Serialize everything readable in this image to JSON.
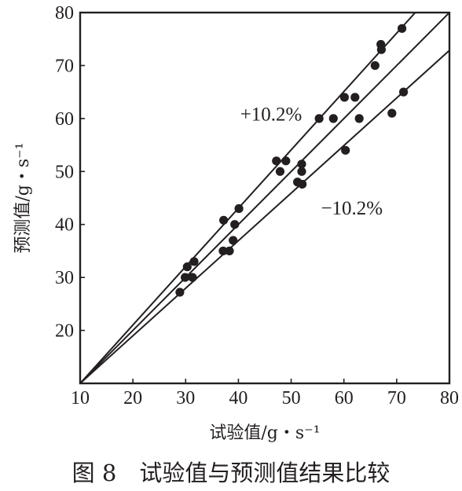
{
  "chart_data": {
    "type": "scatter",
    "title": "",
    "xlabel": "试验值/g・s⁻¹",
    "ylabel": "预测值/g・s⁻¹",
    "xlim": [
      10,
      80
    ],
    "ylim": [
      10,
      80
    ],
    "x_ticks": [
      10,
      20,
      30,
      40,
      50,
      60,
      70,
      80
    ],
    "y_ticks": [
      10,
      20,
      30,
      40,
      50,
      60,
      70,
      80
    ],
    "grid": false,
    "reference_lines": [
      {
        "label": "",
        "slope": 1.0
      },
      {
        "label": "+10.2%",
        "slope": 1.102
      },
      {
        "label": "−10.2%",
        "slope": 0.898
      }
    ],
    "points": [
      [
        28.9,
        27.2
      ],
      [
        29.9,
        30.0
      ],
      [
        30.3,
        32.0
      ],
      [
        31.3,
        30.0
      ],
      [
        31.6,
        33.0
      ],
      [
        37.1,
        35.0
      ],
      [
        37.2,
        40.8
      ],
      [
        38.3,
        35.0
      ],
      [
        39.0,
        37.0
      ],
      [
        39.3,
        40.0
      ],
      [
        40.1,
        43.0
      ],
      [
        47.2,
        52.0
      ],
      [
        47.9,
        50.0
      ],
      [
        49.0,
        52.0
      ],
      [
        51.2,
        48.0
      ],
      [
        52.0,
        51.4
      ],
      [
        52.0,
        50.0
      ],
      [
        52.1,
        47.6
      ],
      [
        55.3,
        60.0
      ],
      [
        58.0,
        60.0
      ],
      [
        60.1,
        64.0
      ],
      [
        60.3,
        54.0
      ],
      [
        62.1,
        64.0
      ],
      [
        62.9,
        60.0
      ],
      [
        65.9,
        70.0
      ],
      [
        67.0,
        74.0
      ],
      [
        67.1,
        73.0
      ],
      [
        69.1,
        61.0
      ],
      [
        71.0,
        77.0
      ],
      [
        71.3,
        65.0
      ]
    ]
  },
  "caption": "图 8　试验值与预测值结果比较"
}
